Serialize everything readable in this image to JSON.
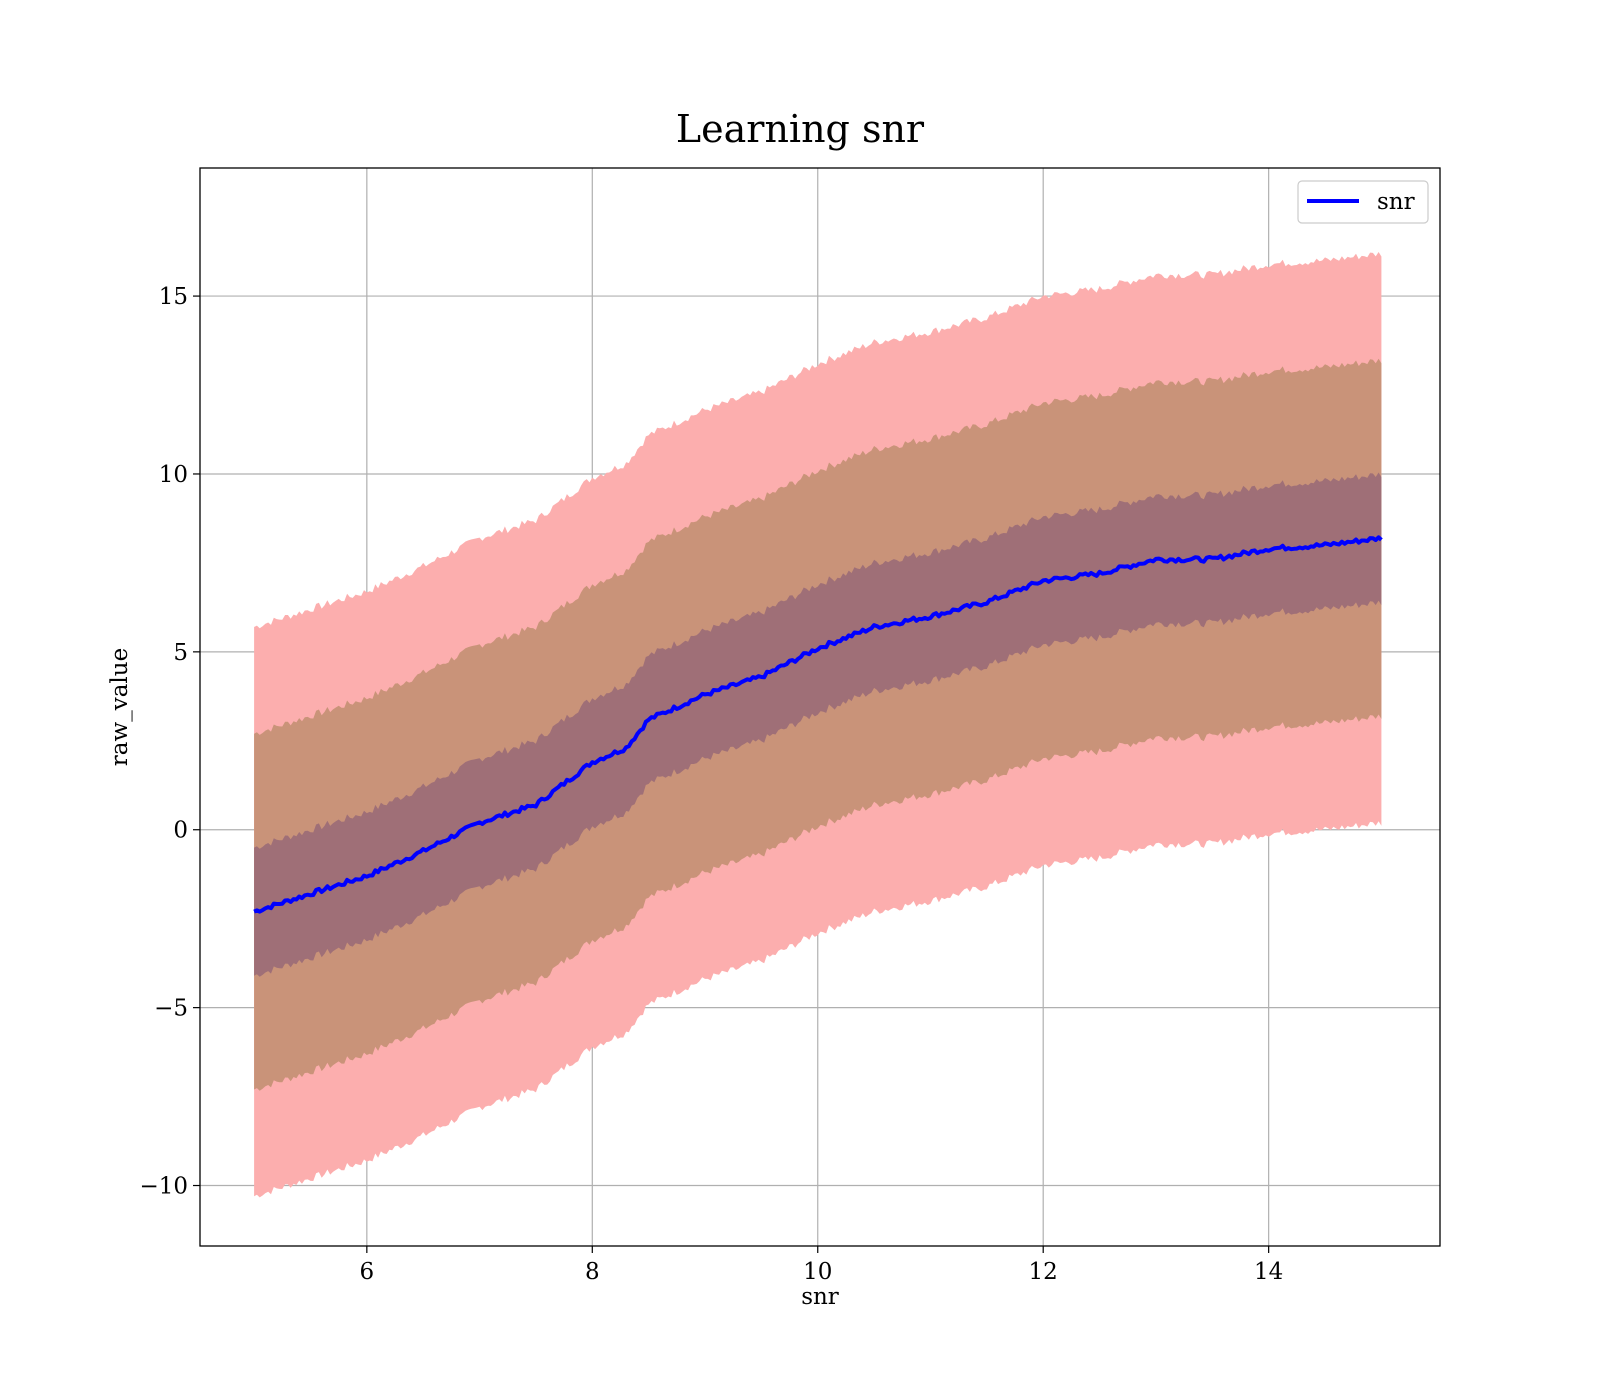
{
  "chart_data": {
    "type": "line",
    "title": "Learning snr",
    "xlabel": "snr",
    "ylabel": "raw_value",
    "xlim": [
      4.52,
      15.52
    ],
    "ylim": [
      -11.7,
      18.6
    ],
    "xticks": [
      6,
      8,
      10,
      12,
      14
    ],
    "xtick_labels": [
      "6",
      "8",
      "10",
      "12",
      "14"
    ],
    "yticks": [
      -10,
      -5,
      0,
      5,
      10,
      15
    ],
    "ytick_labels": [
      "−10",
      "−5",
      "0",
      "5",
      "10",
      "15"
    ],
    "grid": true,
    "legend": {
      "position": "top-right",
      "entries": [
        "snr"
      ]
    },
    "colors": {
      "line": "#0000ff",
      "band_outer": "#fcaeae",
      "band_middle": "#c99379",
      "band_inner": "#9f6f77"
    },
    "x": [
      5.0,
      5.5,
      6.0,
      6.5,
      7.0,
      7.5,
      8.0,
      8.3,
      8.5,
      9.0,
      9.5,
      10.0,
      10.5,
      11.0,
      11.5,
      12.0,
      12.5,
      13.0,
      13.5,
      14.0,
      14.5,
      15.0
    ],
    "series": [
      {
        "name": "snr",
        "values": [
          -2.3,
          -1.8,
          -1.3,
          -0.6,
          0.2,
          0.7,
          1.9,
          2.3,
          3.1,
          3.8,
          4.3,
          5.1,
          5.7,
          6.0,
          6.4,
          7.0,
          7.2,
          7.6,
          7.6,
          7.9,
          8.0,
          8.2
        ]
      }
    ],
    "bands": [
      {
        "lower": [
          -10.3,
          -9.8,
          -9.3,
          -8.6,
          -7.8,
          -7.3,
          -6.1,
          -5.7,
          -4.9,
          -4.2,
          -3.7,
          -2.9,
          -2.3,
          -2.0,
          -1.6,
          -1.0,
          -0.8,
          -0.4,
          -0.4,
          -0.1,
          0.0,
          0.2
        ],
        "upper": [
          5.7,
          6.2,
          6.7,
          7.4,
          8.2,
          8.7,
          9.9,
          10.3,
          11.1,
          11.8,
          12.3,
          13.1,
          13.7,
          14.0,
          14.4,
          15.0,
          15.2,
          15.6,
          15.6,
          15.9,
          16.0,
          16.2
        ]
      },
      {
        "lower": [
          -7.3,
          -6.8,
          -6.3,
          -5.6,
          -4.8,
          -4.3,
          -3.1,
          -2.7,
          -1.9,
          -1.2,
          -0.7,
          0.1,
          0.7,
          1.0,
          1.4,
          2.0,
          2.2,
          2.6,
          2.6,
          2.9,
          3.0,
          3.2
        ],
        "upper": [
          2.7,
          3.2,
          3.7,
          4.4,
          5.2,
          5.7,
          6.9,
          7.3,
          8.1,
          8.8,
          9.3,
          10.1,
          10.7,
          11.0,
          11.4,
          12.0,
          12.2,
          12.6,
          12.6,
          12.9,
          13.0,
          13.2
        ]
      },
      {
        "lower": [
          -4.1,
          -3.6,
          -3.1,
          -2.4,
          -1.6,
          -1.1,
          0.1,
          0.5,
          1.3,
          2.0,
          2.5,
          3.3,
          3.9,
          4.2,
          4.6,
          5.2,
          5.4,
          5.8,
          5.8,
          6.1,
          6.2,
          6.4
        ],
        "upper": [
          -0.5,
          0.0,
          0.5,
          1.2,
          2.0,
          2.5,
          3.7,
          4.1,
          4.9,
          5.6,
          6.1,
          6.9,
          7.5,
          7.8,
          8.2,
          8.8,
          9.0,
          9.4,
          9.4,
          9.7,
          9.8,
          10.0
        ]
      }
    ]
  }
}
